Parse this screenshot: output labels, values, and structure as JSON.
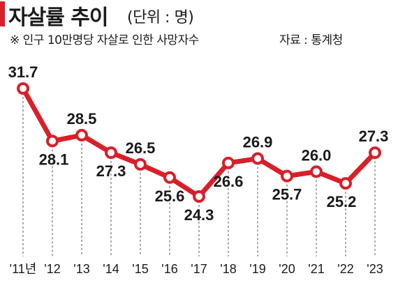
{
  "header": {
    "title": "자살률 추이",
    "unit": "(단위 : 명)",
    "note": "※ 인구 10만명당 자살로 인한 사망자수",
    "source": "자료 : 통계청"
  },
  "colors": {
    "accent": "#d8202a",
    "marker_fill": "#ffffff",
    "guide": "#555555"
  },
  "chart_data": {
    "type": "line",
    "title": "자살률 추이",
    "ylabel": "(단위 : 명)",
    "categories": [
      "'11년",
      "'12",
      "'13",
      "'14",
      "'15",
      "'16",
      "'17",
      "'18",
      "'19",
      "'20",
      "'21",
      "'22",
      "'23"
    ],
    "values": [
      31.7,
      28.1,
      28.5,
      27.3,
      26.5,
      25.6,
      24.3,
      26.6,
      26.9,
      25.7,
      26.0,
      25.2,
      27.3
    ],
    "value_labels": [
      "31.7",
      "28.1",
      "28.5",
      "27.3",
      "26.5",
      "25.6",
      "24.3",
      "26.6",
      "26.9",
      "25.7",
      "26.0",
      "25.2",
      "27.3"
    ],
    "grid": "vertical dashed guides",
    "legend": "none"
  }
}
